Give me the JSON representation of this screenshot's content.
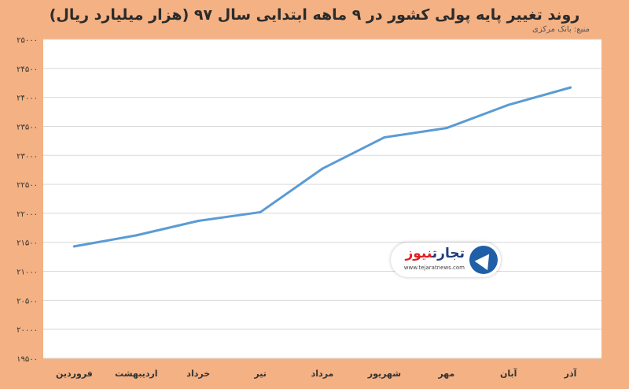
{
  "title": "روند تغییر پایه پولی کشور در ۹ ماهه ابتدایی سال ۹۷ (هزار میلیارد ریال)",
  "source": "منبع: بانک مرکزی",
  "watermark": {
    "name_part1": "تجارت",
    "name_part2": "نیوز",
    "url": "www.tejaratnews.com"
  },
  "colors": {
    "background": "#f4b183",
    "plot": "#ffffff",
    "grid": "#d9d9d9",
    "line": "#5b9bd5"
  },
  "chart_data": {
    "type": "line",
    "categories": [
      "فروردین",
      "اردیبهشت",
      "خرداد",
      "تیر",
      "مرداد",
      "شهریور",
      "مهر",
      "آبان",
      "آذر"
    ],
    "series": [
      {
        "values": [
          21430,
          21620,
          21870,
          22020,
          22770,
          23310,
          23470,
          23870,
          24170
        ]
      }
    ],
    "ylim": [
      19500,
      25000
    ],
    "yticks": [
      "۱۹۵۰۰",
      "۲۰۰۰۰",
      "۲۰۵۰۰",
      "۲۱۰۰۰",
      "۲۱۵۰۰",
      "۲۲۰۰۰",
      "۲۲۵۰۰",
      "۲۳۰۰۰",
      "۲۳۵۰۰",
      "۲۴۰۰۰",
      "۲۴۵۰۰",
      "۲۵۰۰۰"
    ],
    "ytick_values": [
      19500,
      20000,
      20500,
      21000,
      21500,
      22000,
      22500,
      23000,
      23500,
      24000,
      24500,
      25000
    ],
    "grid": true,
    "legend": "none"
  }
}
